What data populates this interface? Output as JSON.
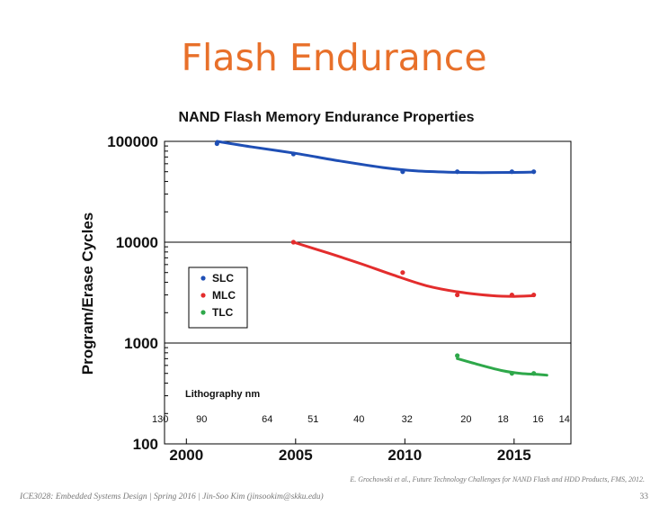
{
  "slide": {
    "title": "Flash Endurance",
    "citation": "E. Grochowski et al., Future Technology Challenges for NAND Flash and HDD Products, FMS, 2012.",
    "footer": "ICE3028: Embedded Systems Design | Spring 2016 | Jin-Soo Kim (jinsookim@skku.edu)",
    "page_number": "33"
  },
  "chart_data": {
    "type": "line",
    "title": "NAND Flash Memory Endurance Properties",
    "xlabel": "",
    "ylabel": "Program/Erase Cycles",
    "xlim": [
      1999,
      2017.6
    ],
    "ylim": [
      100,
      100000
    ],
    "y_scale": "log",
    "x_ticks": [
      2000,
      2005,
      2010,
      2015
    ],
    "x_tick_labels": [
      "2000",
      "2005",
      "2010",
      "2015"
    ],
    "y_ticks": [
      100,
      1000,
      10000,
      100000
    ],
    "y_tick_labels": [
      "100",
      "1000",
      "10000",
      "100000"
    ],
    "grid": "horizontal major lines only",
    "legend": {
      "position": "left-middle",
      "entries": [
        "SLC",
        "MLC",
        "TLC"
      ]
    },
    "series": [
      {
        "name": "SLC",
        "color": "#1f4fb5",
        "points": [
          [
            2001.4,
            95000
          ],
          [
            2004.9,
            75000
          ],
          [
            2009.9,
            50000
          ],
          [
            2012.4,
            50000
          ],
          [
            2014.9,
            50000
          ],
          [
            2015.9,
            50000
          ]
        ],
        "curve": [
          [
            2001.4,
            100000
          ],
          [
            2003.0,
            88000
          ],
          [
            2005.0,
            76000
          ],
          [
            2007.0,
            64000
          ],
          [
            2009.0,
            55000
          ],
          [
            2010.5,
            51000
          ],
          [
            2012.0,
            49500
          ],
          [
            2013.5,
            49000
          ],
          [
            2015.0,
            49200
          ],
          [
            2015.9,
            49600
          ]
        ]
      },
      {
        "name": "MLC",
        "color": "#e32d2d",
        "points": [
          [
            2004.9,
            10000
          ],
          [
            2009.9,
            5000
          ],
          [
            2012.4,
            3000
          ],
          [
            2014.9,
            3000
          ],
          [
            2015.9,
            3000
          ]
        ],
        "curve": [
          [
            2004.9,
            10000
          ],
          [
            2006.5,
            7800
          ],
          [
            2008.0,
            6100
          ],
          [
            2009.5,
            4700
          ],
          [
            2011.0,
            3700
          ],
          [
            2012.5,
            3200
          ],
          [
            2014.0,
            2950
          ],
          [
            2015.0,
            2900
          ],
          [
            2015.9,
            2950
          ]
        ]
      },
      {
        "name": "TLC",
        "color": "#2ea84a",
        "points": [
          [
            2012.4,
            750
          ],
          [
            2014.9,
            500
          ],
          [
            2015.9,
            500
          ]
        ],
        "curve": [
          [
            2012.4,
            700
          ],
          [
            2013.5,
            600
          ],
          [
            2014.5,
            530
          ],
          [
            2015.3,
            500
          ],
          [
            2016.0,
            490
          ],
          [
            2016.5,
            480
          ]
        ]
      }
    ],
    "annotations": {
      "lithography_label": "Lithography nm",
      "lithography_nodes": [
        {
          "label": "130",
          "x": 1998.8
        },
        {
          "label": "90",
          "x": 2000.7
        },
        {
          "label": "64",
          "x": 2003.7
        },
        {
          "label": "51",
          "x": 2005.8
        },
        {
          "label": "40",
          "x": 2007.9
        },
        {
          "label": "32",
          "x": 2010.1
        },
        {
          "label": "20",
          "x": 2012.8
        },
        {
          "label": "18",
          "x": 2014.5
        },
        {
          "label": "16",
          "x": 2016.1
        },
        {
          "label": "14",
          "x": 2017.3
        }
      ]
    }
  }
}
